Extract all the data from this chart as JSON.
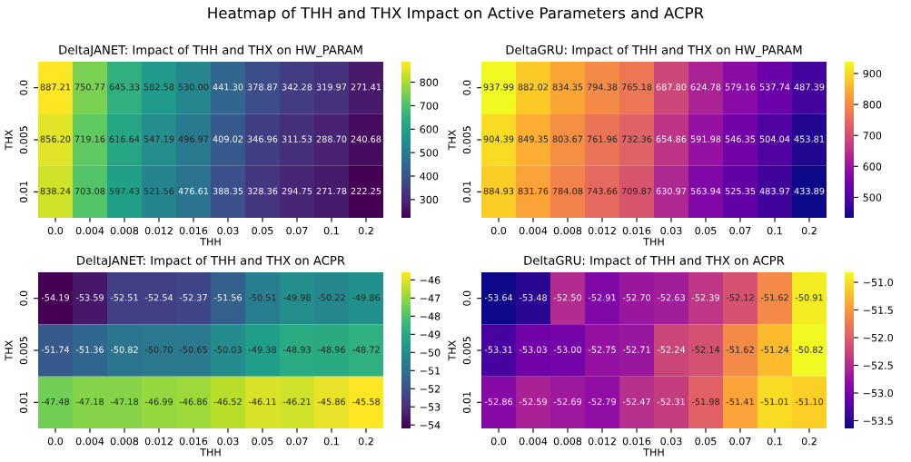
{
  "chart_data": [
    {
      "type": "heatmap",
      "title": "DeltaJANET: Impact of THH and THX on HW_PARAM",
      "xlabel": "THH",
      "ylabel": "THX",
      "annotations": [
        "Heatmap of THH and THX Impact on Active Parameters and ACPR"
      ],
      "categories": [
        "0.0",
        "0.004",
        "0.008",
        "0.012",
        "0.016",
        "0.03",
        "0.05",
        "0.07",
        "0.1",
        "0.2"
      ],
      "y_categories": [
        "0.0",
        "0.005",
        "0.01"
      ],
      "cells": [
        [
          887.21,
          750.77,
          645.33,
          582.58,
          530.0,
          441.3,
          378.87,
          342.28,
          319.97,
          271.41
        ],
        [
          856.2,
          719.16,
          616.64,
          547.19,
          496.97,
          409.02,
          346.96,
          311.53,
          288.7,
          240.68
        ],
        [
          838.24,
          703.08,
          597.43,
          521.56,
          476.61,
          388.35,
          328.36,
          294.75,
          271.78,
          222.25
        ]
      ],
      "cell_labels": [
        [
          "887.21",
          "750.77",
          "645.33",
          "582.58",
          "530.00",
          "441.30",
          "378.87",
          "342.28",
          "319.97",
          "271.41"
        ],
        [
          "856.20",
          "719.16",
          "616.64",
          "547.19",
          "496.97",
          "409.02",
          "346.96",
          "311.53",
          "288.70",
          "240.68"
        ],
        [
          "838.24",
          "703.08",
          "597.43",
          "521.56",
          "476.61",
          "388.35",
          "328.36",
          "294.75",
          "271.78",
          "222.25"
        ]
      ],
      "clim": [
        222.25,
        887.21
      ],
      "cticks": [
        300,
        400,
        500,
        600,
        700,
        800
      ],
      "colors": [
        "#440154",
        "#482878",
        "#3e4989",
        "#31688e",
        "#26828e",
        "#1f9e89",
        "#35b779",
        "#6ece58",
        "#b5de2b",
        "#fde725"
      ],
      "data_labels": true
    },
    {
      "type": "heatmap",
      "title": "DeltaGRU: Impact of THH and THX on HW_PARAM",
      "xlabel": "THH",
      "ylabel": "THX",
      "categories": [
        "0.0",
        "0.004",
        "0.008",
        "0.012",
        "0.016",
        "0.03",
        "0.05",
        "0.07",
        "0.1",
        "0.2"
      ],
      "y_categories": [
        "0.0",
        "0.005",
        "0.01"
      ],
      "cells": [
        [
          937.99,
          882.02,
          834.35,
          794.38,
          765.18,
          687.8,
          624.78,
          579.16,
          537.74,
          487.39
        ],
        [
          904.39,
          849.35,
          803.67,
          761.96,
          732.36,
          654.86,
          591.98,
          546.35,
          504.04,
          453.81
        ],
        [
          884.93,
          831.76,
          784.08,
          743.66,
          709.87,
          630.97,
          563.94,
          525.35,
          483.97,
          433.89
        ]
      ],
      "cell_labels": [
        [
          "937.99",
          "882.02",
          "834.35",
          "794.38",
          "765.18",
          "687.80",
          "624.78",
          "579.16",
          "537.74",
          "487.39"
        ],
        [
          "904.39",
          "849.35",
          "803.67",
          "761.96",
          "732.36",
          "654.86",
          "591.98",
          "546.35",
          "504.04",
          "453.81"
        ],
        [
          "884.93",
          "831.76",
          "784.08",
          "743.66",
          "709.87",
          "630.97",
          "563.94",
          "525.35",
          "483.97",
          "433.89"
        ]
      ],
      "clim": [
        433.89,
        937.99
      ],
      "cticks": [
        500,
        600,
        700,
        800,
        900
      ],
      "colors": [
        "#0d0887",
        "#41049d",
        "#6a00a8",
        "#8f0da4",
        "#b12a90",
        "#cc4778",
        "#e16462",
        "#f2844b",
        "#fca636",
        "#fcce25",
        "#f0f921"
      ],
      "data_labels": true
    },
    {
      "type": "heatmap",
      "title": "DeltaJANET: Impact of THH and THX on ACPR",
      "xlabel": "THH",
      "ylabel": "THX",
      "categories": [
        "0.0",
        "0.004",
        "0.008",
        "0.012",
        "0.016",
        "0.03",
        "0.05",
        "0.07",
        "0.1",
        "0.2"
      ],
      "y_categories": [
        "0.0",
        "0.005",
        "0.01"
      ],
      "cells": [
        [
          -54.19,
          -53.59,
          -52.51,
          -52.54,
          -52.37,
          -51.56,
          -50.51,
          -49.98,
          -50.22,
          -49.86
        ],
        [
          -51.74,
          -51.36,
          -50.82,
          -50.7,
          -50.65,
          -50.03,
          -49.38,
          -48.93,
          -48.96,
          -48.72
        ],
        [
          -47.48,
          -47.18,
          -47.18,
          -46.99,
          -46.86,
          -46.52,
          -46.11,
          -46.21,
          -45.86,
          -45.58
        ]
      ],
      "cell_labels": [
        [
          "-54.19",
          "-53.59",
          "-52.51",
          "-52.54",
          "-52.37",
          "-51.56",
          "-50.51",
          "-49.98",
          "-50.22",
          "-49.86"
        ],
        [
          "-51.74",
          "-51.36",
          "-50.82",
          "-50.70",
          "-50.65",
          "-50.03",
          "-49.38",
          "-48.93",
          "-48.96",
          "-48.72"
        ],
        [
          "-47.48",
          "-47.18",
          "-47.18",
          "-46.99",
          "-46.86",
          "-46.52",
          "-46.11",
          "-46.21",
          "-45.86",
          "-45.58"
        ]
      ],
      "clim": [
        -54.19,
        -45.58
      ],
      "cticks": [
        {
          "value": -54,
          "label": "−54"
        },
        {
          "value": -53,
          "label": "−53"
        },
        {
          "value": -52,
          "label": "−52"
        },
        {
          "value": -51,
          "label": "−51"
        },
        {
          "value": -50,
          "label": "−50"
        },
        {
          "value": -49,
          "label": "−49"
        },
        {
          "value": -48,
          "label": "−48"
        },
        {
          "value": -47,
          "label": "−47"
        },
        {
          "value": -46,
          "label": "−46"
        }
      ],
      "colors": [
        "#440154",
        "#482878",
        "#3e4989",
        "#31688e",
        "#26828e",
        "#1f9e89",
        "#35b779",
        "#6ece58",
        "#b5de2b",
        "#fde725"
      ],
      "data_labels": true
    },
    {
      "type": "heatmap",
      "title": "DeltaGRU: Impact of THH and THX on ACPR",
      "xlabel": "THH",
      "ylabel": "THX",
      "categories": [
        "0.0",
        "0.004",
        "0.008",
        "0.012",
        "0.016",
        "0.03",
        "0.05",
        "0.07",
        "0.1",
        "0.2"
      ],
      "y_categories": [
        "0.0",
        "0.005",
        "0.01"
      ],
      "cells": [
        [
          -53.64,
          -53.48,
          -52.5,
          -52.91,
          -52.7,
          -52.63,
          -52.39,
          -52.12,
          -51.62,
          -50.91
        ],
        [
          -53.31,
          -53.03,
          -53.0,
          -52.75,
          -52.71,
          -52.24,
          -52.14,
          -51.62,
          -51.24,
          -50.82
        ],
        [
          -52.86,
          -52.59,
          -52.69,
          -52.79,
          -52.47,
          -52.31,
          -51.98,
          -51.41,
          -51.01,
          -51.1
        ]
      ],
      "cell_labels": [
        [
          "-53.64",
          "-53.48",
          "-52.50",
          "-52.91",
          "-52.70",
          "-52.63",
          "-52.39",
          "-52.12",
          "-51.62",
          "-50.91"
        ],
        [
          "-53.31",
          "-53.03",
          "-53.00",
          "-52.75",
          "-52.71",
          "-52.24",
          "-52.14",
          "-51.62",
          "-51.24",
          "-50.82"
        ],
        [
          "-52.86",
          "-52.59",
          "-52.69",
          "-52.79",
          "-52.47",
          "-52.31",
          "-51.98",
          "-51.41",
          "-51.01",
          "-51.10"
        ]
      ],
      "clim": [
        -53.64,
        -50.82
      ],
      "cticks": [
        {
          "value": -53.5,
          "label": "−53.5"
        },
        {
          "value": -53.0,
          "label": "−53.0"
        },
        {
          "value": -52.5,
          "label": "−52.5"
        },
        {
          "value": -52.0,
          "label": "−52.0"
        },
        {
          "value": -51.5,
          "label": "−51.5"
        },
        {
          "value": -51.0,
          "label": "−51.0"
        }
      ],
      "colors": [
        "#0d0887",
        "#41049d",
        "#6a00a8",
        "#8f0da4",
        "#b12a90",
        "#cc4778",
        "#e16462",
        "#f2844b",
        "#fca636",
        "#fcce25",
        "#f0f921"
      ],
      "data_labels": true
    }
  ]
}
